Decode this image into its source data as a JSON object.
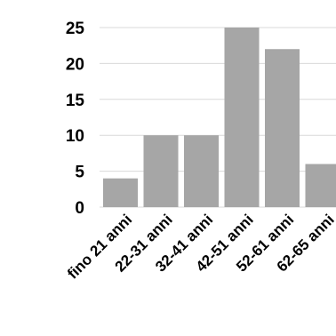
{
  "chart_data": {
    "type": "bar",
    "title": "",
    "xlabel": "",
    "ylabel": "",
    "categories": [
      "fino 21 anni",
      "22-31 anni",
      "32-41 anni",
      "42-51 anni",
      "52-61 anni",
      "62-65 anni"
    ],
    "values": [
      4,
      10,
      10,
      25,
      22,
      6
    ],
    "ylim": [
      0,
      25
    ],
    "yticks": [
      "0",
      "5",
      "10",
      "15",
      "20",
      "25"
    ],
    "grid": true,
    "legend": "none",
    "bar_color": "#a6a6a6",
    "grid_color": "#d9d9d9"
  }
}
